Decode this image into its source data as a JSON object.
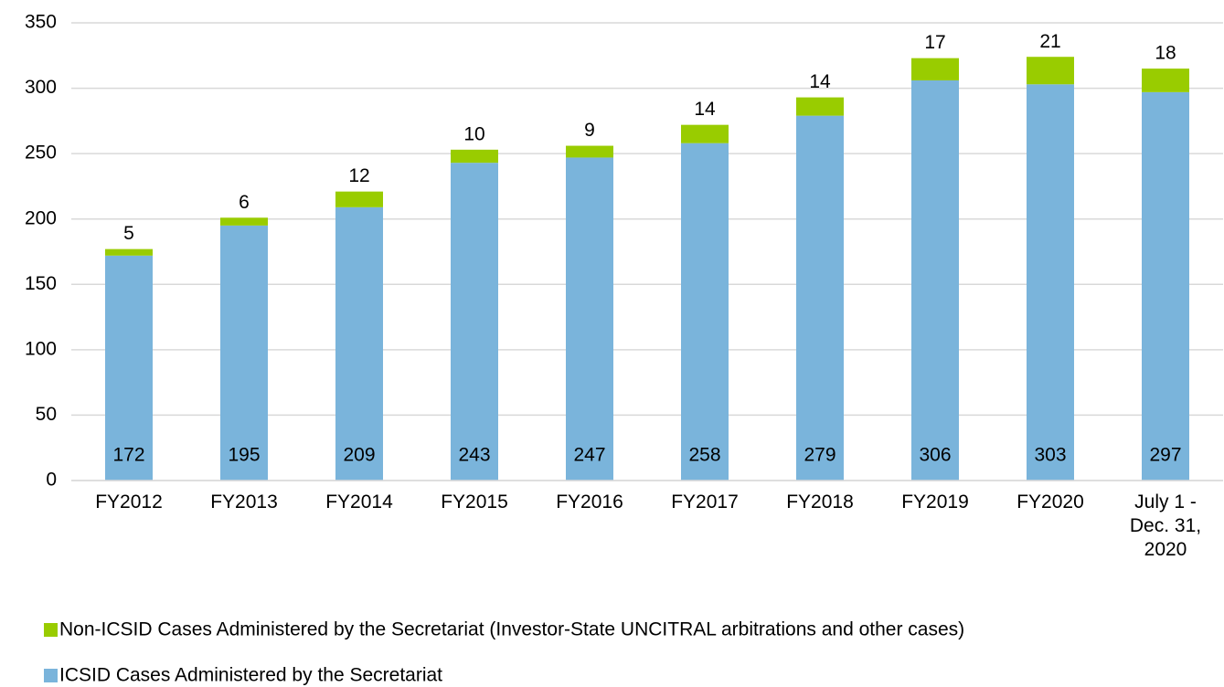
{
  "chart_data": {
    "type": "stacked_bar",
    "categories": [
      "FY2012",
      "FY2013",
      "FY2014",
      "FY2015",
      "FY2016",
      "FY2017",
      "FY2018",
      "FY2019",
      "FY2020",
      "July 1 - Dec. 31, 2020"
    ],
    "series": [
      {
        "name": "ICSID Cases Administered by the Secretariat",
        "color": "#7ab4db",
        "values": [
          172,
          195,
          209,
          243,
          247,
          258,
          279,
          306,
          303,
          297
        ]
      },
      {
        "name": "Non-ICSID Cases Administered by the Secretariat (Investor-State UNCITRAL arbitrations and other cases)",
        "color": "#99cc00",
        "values": [
          5,
          6,
          12,
          10,
          9,
          14,
          14,
          17,
          21,
          18
        ]
      }
    ],
    "ylim": [
      0,
      350
    ],
    "yticks": [
      0,
      50,
      100,
      150,
      200,
      250,
      300,
      350
    ],
    "grid": true
  }
}
